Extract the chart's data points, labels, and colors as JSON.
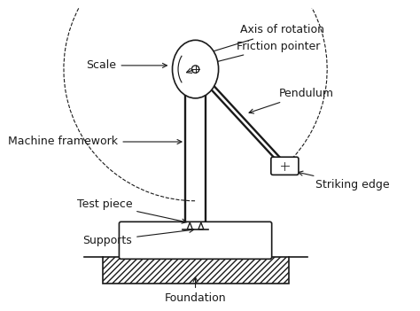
{
  "bg_color": "#ffffff",
  "line_color": "#1a1a1a",
  "hatch_color": "#1a1a1a",
  "labels": {
    "axis_of_rotation": "Axis of rotation",
    "friction_pointer": "Friction pointer",
    "pendulum": "Pendulum",
    "scale": "Scale",
    "machine_framework": "Machine framework",
    "test_piece": "Test piece",
    "supports": "Supports",
    "striking_edge": "Striking edge",
    "foundation": "Foundation"
  },
  "font_size": 9,
  "fig_width": 4.74,
  "fig_height": 3.51,
  "dpi": 100
}
